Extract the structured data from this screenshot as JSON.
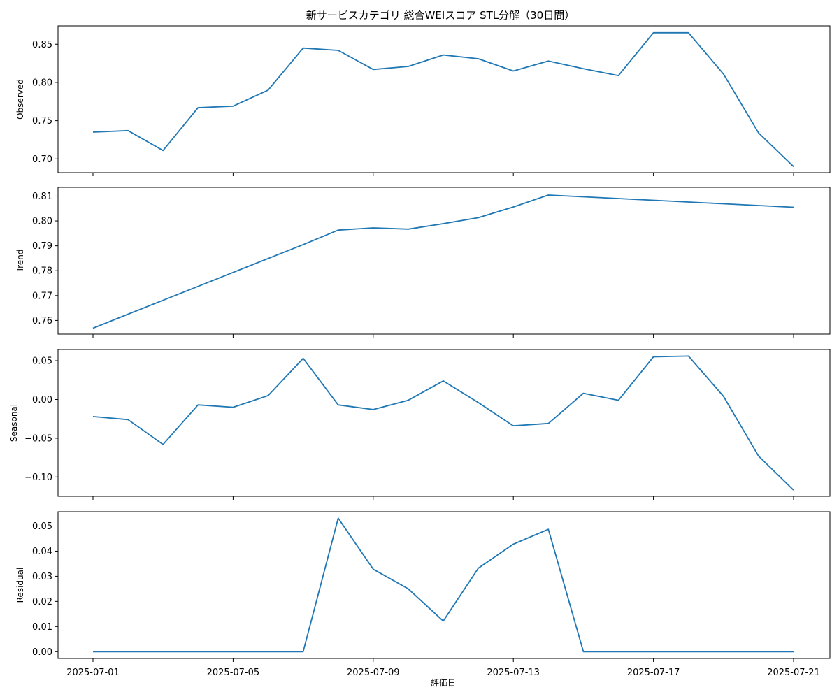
{
  "chart_data": {
    "type": "line",
    "title": "新サービスカテゴリ 総合WEIスコア STL分解（30日間）",
    "xlabel": "評価日",
    "x": [
      "2025-07-01",
      "2025-07-02",
      "2025-07-03",
      "2025-07-04",
      "2025-07-05",
      "2025-07-06",
      "2025-07-07",
      "2025-07-08",
      "2025-07-09",
      "2025-07-10",
      "2025-07-11",
      "2025-07-12",
      "2025-07-13",
      "2025-07-14",
      "2025-07-15",
      "2025-07-16",
      "2025-07-17",
      "2025-07-18",
      "2025-07-19",
      "2025-07-20",
      "2025-07-21"
    ],
    "x_ticks": [
      "2025-07-01",
      "2025-07-05",
      "2025-07-09",
      "2025-07-13",
      "2025-07-17",
      "2025-07-21"
    ],
    "color": "#1f77b4",
    "panels": [
      {
        "ylabel": "Observed",
        "ylim": [
          0.682,
          0.874
        ],
        "y_ticks": [
          0.7,
          0.75,
          0.8,
          0.85
        ],
        "tick_labels": [
          "0.70",
          "0.75",
          "0.80",
          "0.85"
        ],
        "values": [
          0.735,
          0.737,
          0.711,
          0.767,
          0.769,
          0.79,
          0.845,
          0.842,
          0.817,
          0.821,
          0.836,
          0.831,
          0.815,
          0.828,
          0.818,
          0.809,
          0.865,
          0.865,
          0.811,
          0.734,
          0.69
        ]
      },
      {
        "ylabel": "Trend",
        "ylim": [
          0.7545,
          0.8135
        ],
        "y_ticks": [
          0.76,
          0.77,
          0.78,
          0.79,
          0.8,
          0.81
        ],
        "tick_labels": [
          "0.76",
          "0.77",
          "0.78",
          "0.79",
          "0.80",
          "0.81"
        ],
        "values": [
          0.7569,
          0.7625,
          0.7681,
          0.7737,
          0.7793,
          0.7849,
          0.7905,
          0.7963,
          0.7972,
          0.7967,
          0.7989,
          0.8013,
          0.8056,
          0.8104,
          0.8097,
          0.809,
          0.8083,
          0.8076,
          0.8069,
          0.8062,
          0.8055
        ]
      },
      {
        "ylabel": "Seasonal",
        "ylim": [
          -0.125,
          0.0645
        ],
        "y_ticks": [
          -0.1,
          -0.05,
          0.0,
          0.05
        ],
        "tick_labels": [
          "−0.10",
          "−0.05",
          "0.00",
          "0.05"
        ],
        "values": [
          -0.022,
          -0.026,
          -0.058,
          -0.007,
          -0.01,
          0.005,
          0.053,
          -0.007,
          -0.013,
          -0.001,
          0.024,
          -0.004,
          -0.034,
          -0.031,
          0.008,
          -0.001,
          0.055,
          0.056,
          0.004,
          -0.073,
          -0.117
        ]
      },
      {
        "ylabel": "Residual",
        "ylim": [
          -0.0027,
          0.0557
        ],
        "y_ticks": [
          0.0,
          0.01,
          0.02,
          0.03,
          0.04,
          0.05
        ],
        "tick_labels": [
          "0.00",
          "0.01",
          "0.02",
          "0.03",
          "0.04",
          "0.05"
        ],
        "values": [
          0,
          0,
          0,
          0,
          0,
          0,
          0,
          0.0531,
          0.0328,
          0.025,
          0.0122,
          0.0332,
          0.0428,
          0.0487,
          0,
          0,
          0,
          0,
          0,
          0,
          0
        ]
      }
    ]
  }
}
